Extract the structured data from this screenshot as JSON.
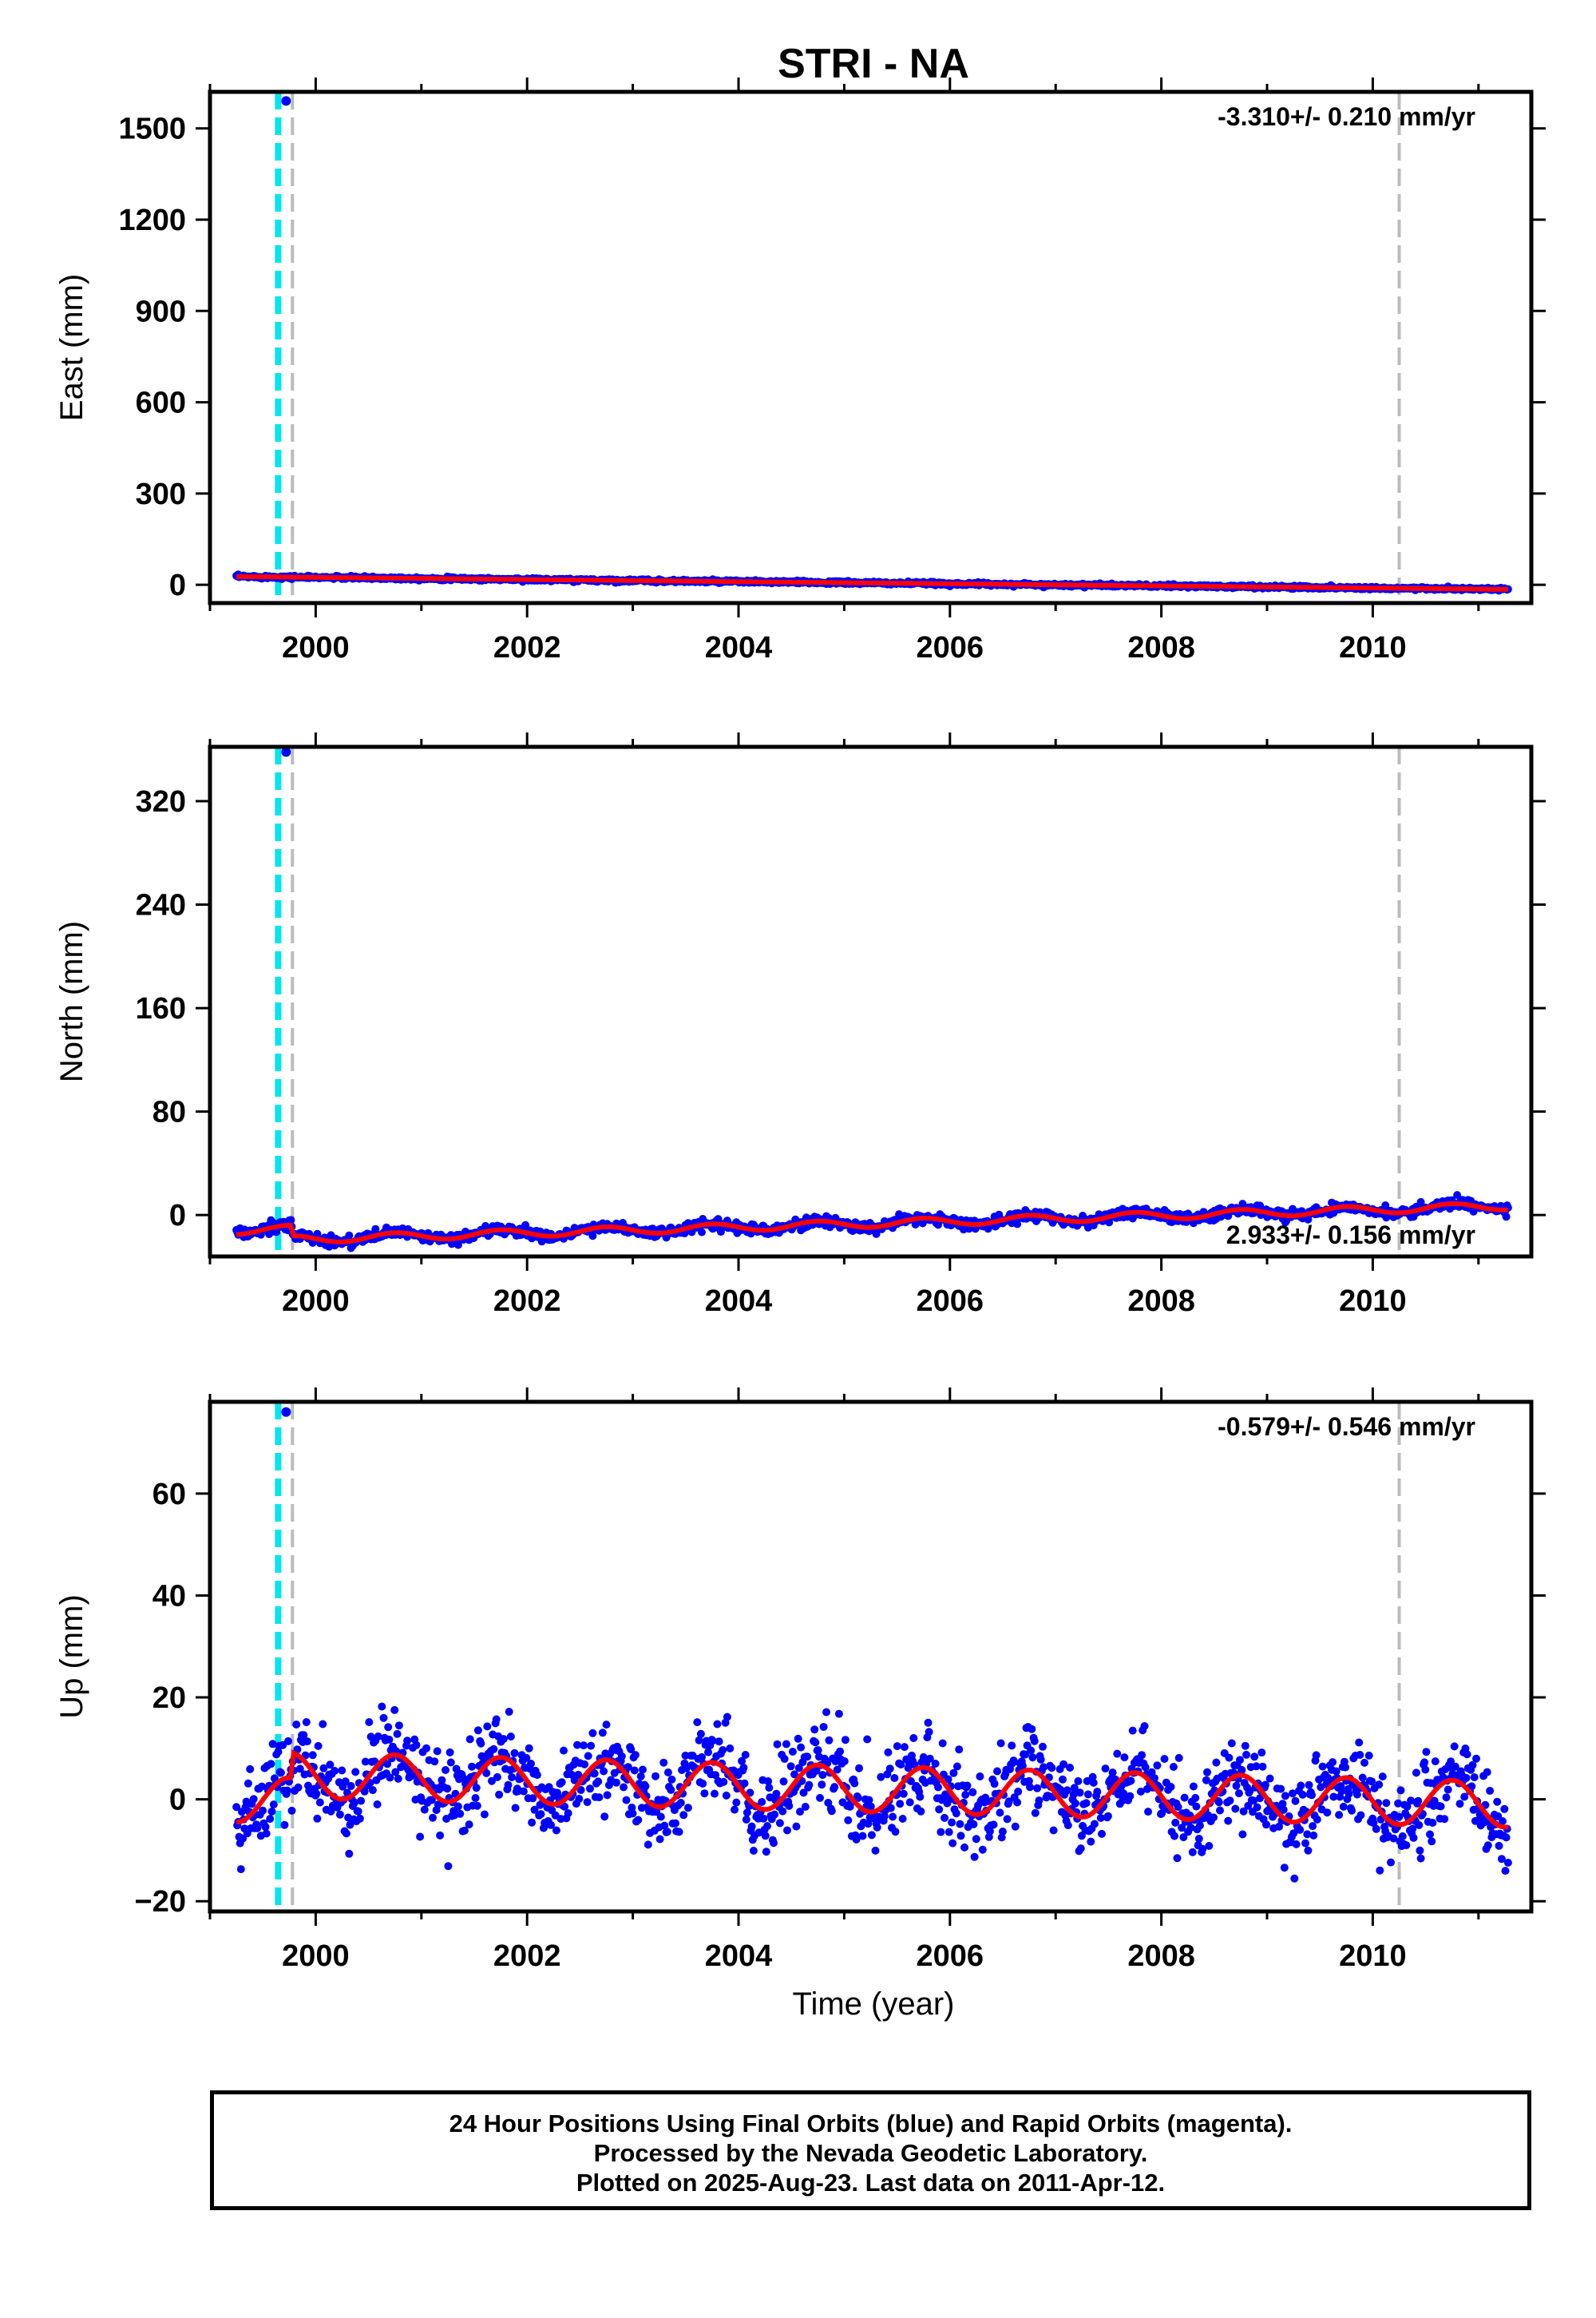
{
  "figure": {
    "title": "STRI - NA",
    "x_axis_label": "Time (year)",
    "colors": {
      "daily_positions": "#0000ff",
      "model_fit": "#ff0000",
      "equipment_change": "#00e5ee",
      "event_marker": "#bbbbbb",
      "frame": "#000000"
    }
  },
  "footer": {
    "line1": "24 Hour Positions Using Final Orbits (blue) and Rapid Orbits (magenta).",
    "line2": "Processed by the Nevada Geodetic Laboratory.",
    "line3": "Plotted on 2025-Aug-23. Last data on 2011-Apr-12."
  },
  "chart_data": [
    {
      "type": "scatter",
      "component": "east",
      "ylabel": "East (mm)",
      "xlim": [
        1999.0,
        2011.5
      ],
      "ylim": [
        -60,
        1620
      ],
      "yticks": [
        0,
        300,
        600,
        900,
        1200,
        1500
      ],
      "xticks": [
        2000,
        2002,
        2004,
        2006,
        2008,
        2010
      ],
      "rate_label": "-3.310+/- 0.210 mm/yr",
      "rate_label_position": "top-right",
      "start": 1999.25,
      "end": 2011.28,
      "start_value": 27,
      "end_value": -15,
      "seasonal_amplitude": 0,
      "scatter": 2.5,
      "offset_at_1999_78": 0,
      "outlier": {
        "x": 1999.72,
        "y": 1590
      },
      "equipment_change_x": [
        1999.63,
        1999.66
      ],
      "event_x": [
        1999.78,
        2010.25
      ]
    },
    {
      "type": "scatter",
      "component": "north",
      "ylabel": "North (mm)",
      "xlim": [
        1999.0,
        2011.5
      ],
      "ylim": [
        -32,
        362
      ],
      "yticks": [
        0,
        80,
        160,
        240,
        320
      ],
      "xticks": [
        2000,
        2002,
        2004,
        2006,
        2008,
        2010
      ],
      "rate_label": "2.933+/- 0.156 mm/yr",
      "rate_label_position": "bottom-right",
      "start": 1999.25,
      "end": 2011.28,
      "start_value": -12,
      "end_value": 15,
      "seasonal_amplitude": 3,
      "scatter": 2,
      "offset_at_1999_78": -8,
      "outlier": {
        "x": 1999.72,
        "y": 358
      },
      "equipment_change_x": [
        1999.63,
        1999.66
      ],
      "event_x": [
        1999.78,
        2010.25
      ]
    },
    {
      "type": "scatter",
      "component": "up",
      "ylabel": "Up (mm)",
      "xlim": [
        1999.0,
        2011.5
      ],
      "ylim": [
        -22,
        78
      ],
      "yticks": [
        -20,
        0,
        20,
        40,
        60
      ],
      "xticks": [
        2000,
        2002,
        2004,
        2006,
        2008,
        2010
      ],
      "rate_label": "-0.579+/- 0.546 mm/yr",
      "rate_label_position": "top-right",
      "start": 1999.25,
      "end": 2011.28,
      "start_value": 0,
      "end_value": -6,
      "seasonal_amplitude": 4.5,
      "scatter": 4,
      "offset_at_1999_78": 5,
      "outlier": {
        "x": 1999.72,
        "y": 76
      },
      "equipment_change_x": [
        1999.63,
        1999.66
      ],
      "event_x": [
        1999.78,
        2010.25
      ]
    }
  ]
}
